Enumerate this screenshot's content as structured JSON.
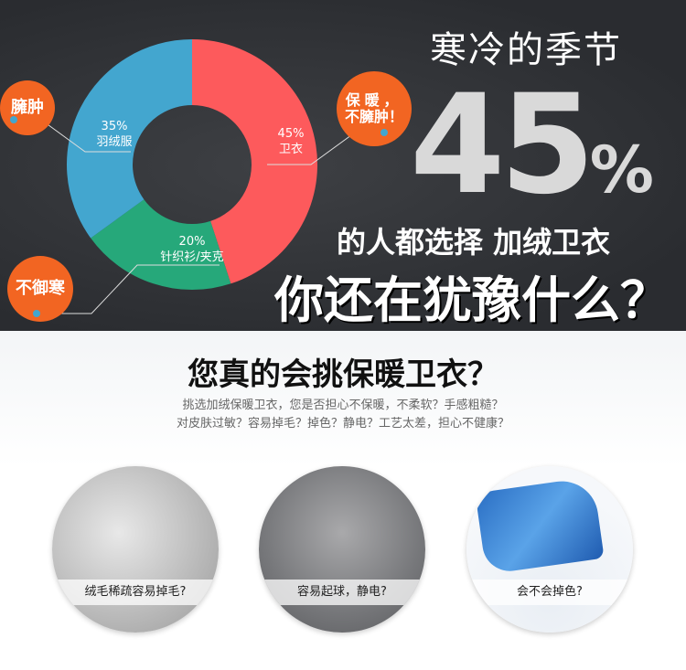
{
  "chart_data": {
    "type": "pie",
    "slices": [
      {
        "label": "卫衣",
        "value": 45,
        "value_label": "45%",
        "color": "#fd5a5c"
      },
      {
        "label": "针织衫/夹克",
        "value": 20,
        "value_label": "20%",
        "color": "#26a87a"
      },
      {
        "label": "羽绒服",
        "value": 35,
        "value_label": "35%",
        "color": "#43a6cf"
      }
    ],
    "annotations": [
      "保暖，不臃肿！",
      "不御寒",
      "臃肿"
    ]
  },
  "hero": {
    "season": "寒冷的季节",
    "pct_num": "45",
    "pct_sign": "%",
    "line2": "的人都选择 加绒卫衣",
    "line3": "你还在犹豫什么？"
  },
  "bubbles": {
    "warm1": "保暖，",
    "warm2": "不臃肿！",
    "cold": "不御寒",
    "bulky": "臃肿"
  },
  "bubble_color": "#f26522",
  "section": {
    "question": "您真的会挑保暖卫衣？",
    "desc1": "挑选加绒保暖卫衣，您是否担心不保暖，不柔软？手感粗糙？",
    "desc2": "对皮肤过敏？容易掉毛？掉色？静电？工艺太差，担心不健康？",
    "items": [
      {
        "label": "绒毛稀疏容易掉毛?"
      },
      {
        "label": "容易起球，静电?"
      },
      {
        "label": "会不会掉色?"
      }
    ]
  }
}
